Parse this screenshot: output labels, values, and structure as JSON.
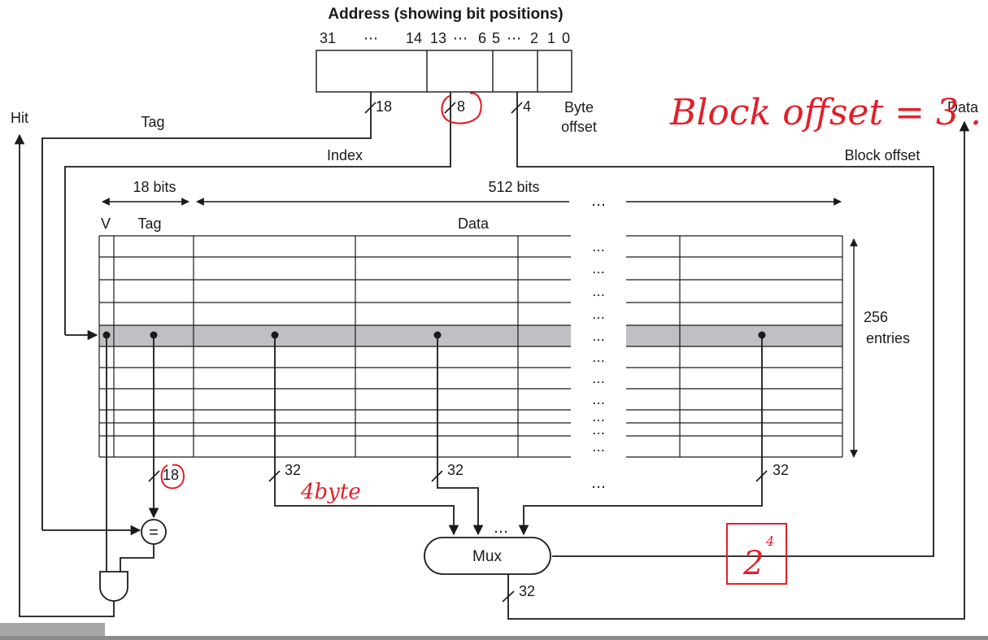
{
  "title": "Address (showing bit positions)",
  "bit_positions": {
    "b31": "31",
    "b14": "14",
    "b13": "13",
    "b6": "6",
    "b5": "5",
    "b2": "2",
    "b1": "1",
    "b0": "0",
    "ellipsis": "⋯"
  },
  "fields": {
    "tag_width": "18",
    "index_width": "8",
    "block_offset_width": "4",
    "byte_offset_line1": "Byte",
    "byte_offset_line2": "offset"
  },
  "labels": {
    "hit": "Hit",
    "tag": "Tag",
    "index": "Index",
    "block_offset": "Block offset",
    "data_out": "Data",
    "tag_bits": "18 bits",
    "data_bits": "512 bits",
    "col_v": "V",
    "col_tag": "Tag",
    "col_data": "Data",
    "entries_line1": "256",
    "entries_line2": "entries",
    "tag_compare_width": "18",
    "word_width": "32",
    "comparator": "=",
    "mux": "Mux",
    "mux_out_width": "32",
    "ellipsis": "…"
  },
  "annotations": {
    "block_offset_note": "Block offset = 3 .",
    "word_size_note": "4byte",
    "power_note_base": "2",
    "power_note_exp": "4"
  },
  "colors": {
    "line": "#1a1a1a",
    "highlight_row": "#c0c0c4",
    "annotation": "#e2202a"
  }
}
